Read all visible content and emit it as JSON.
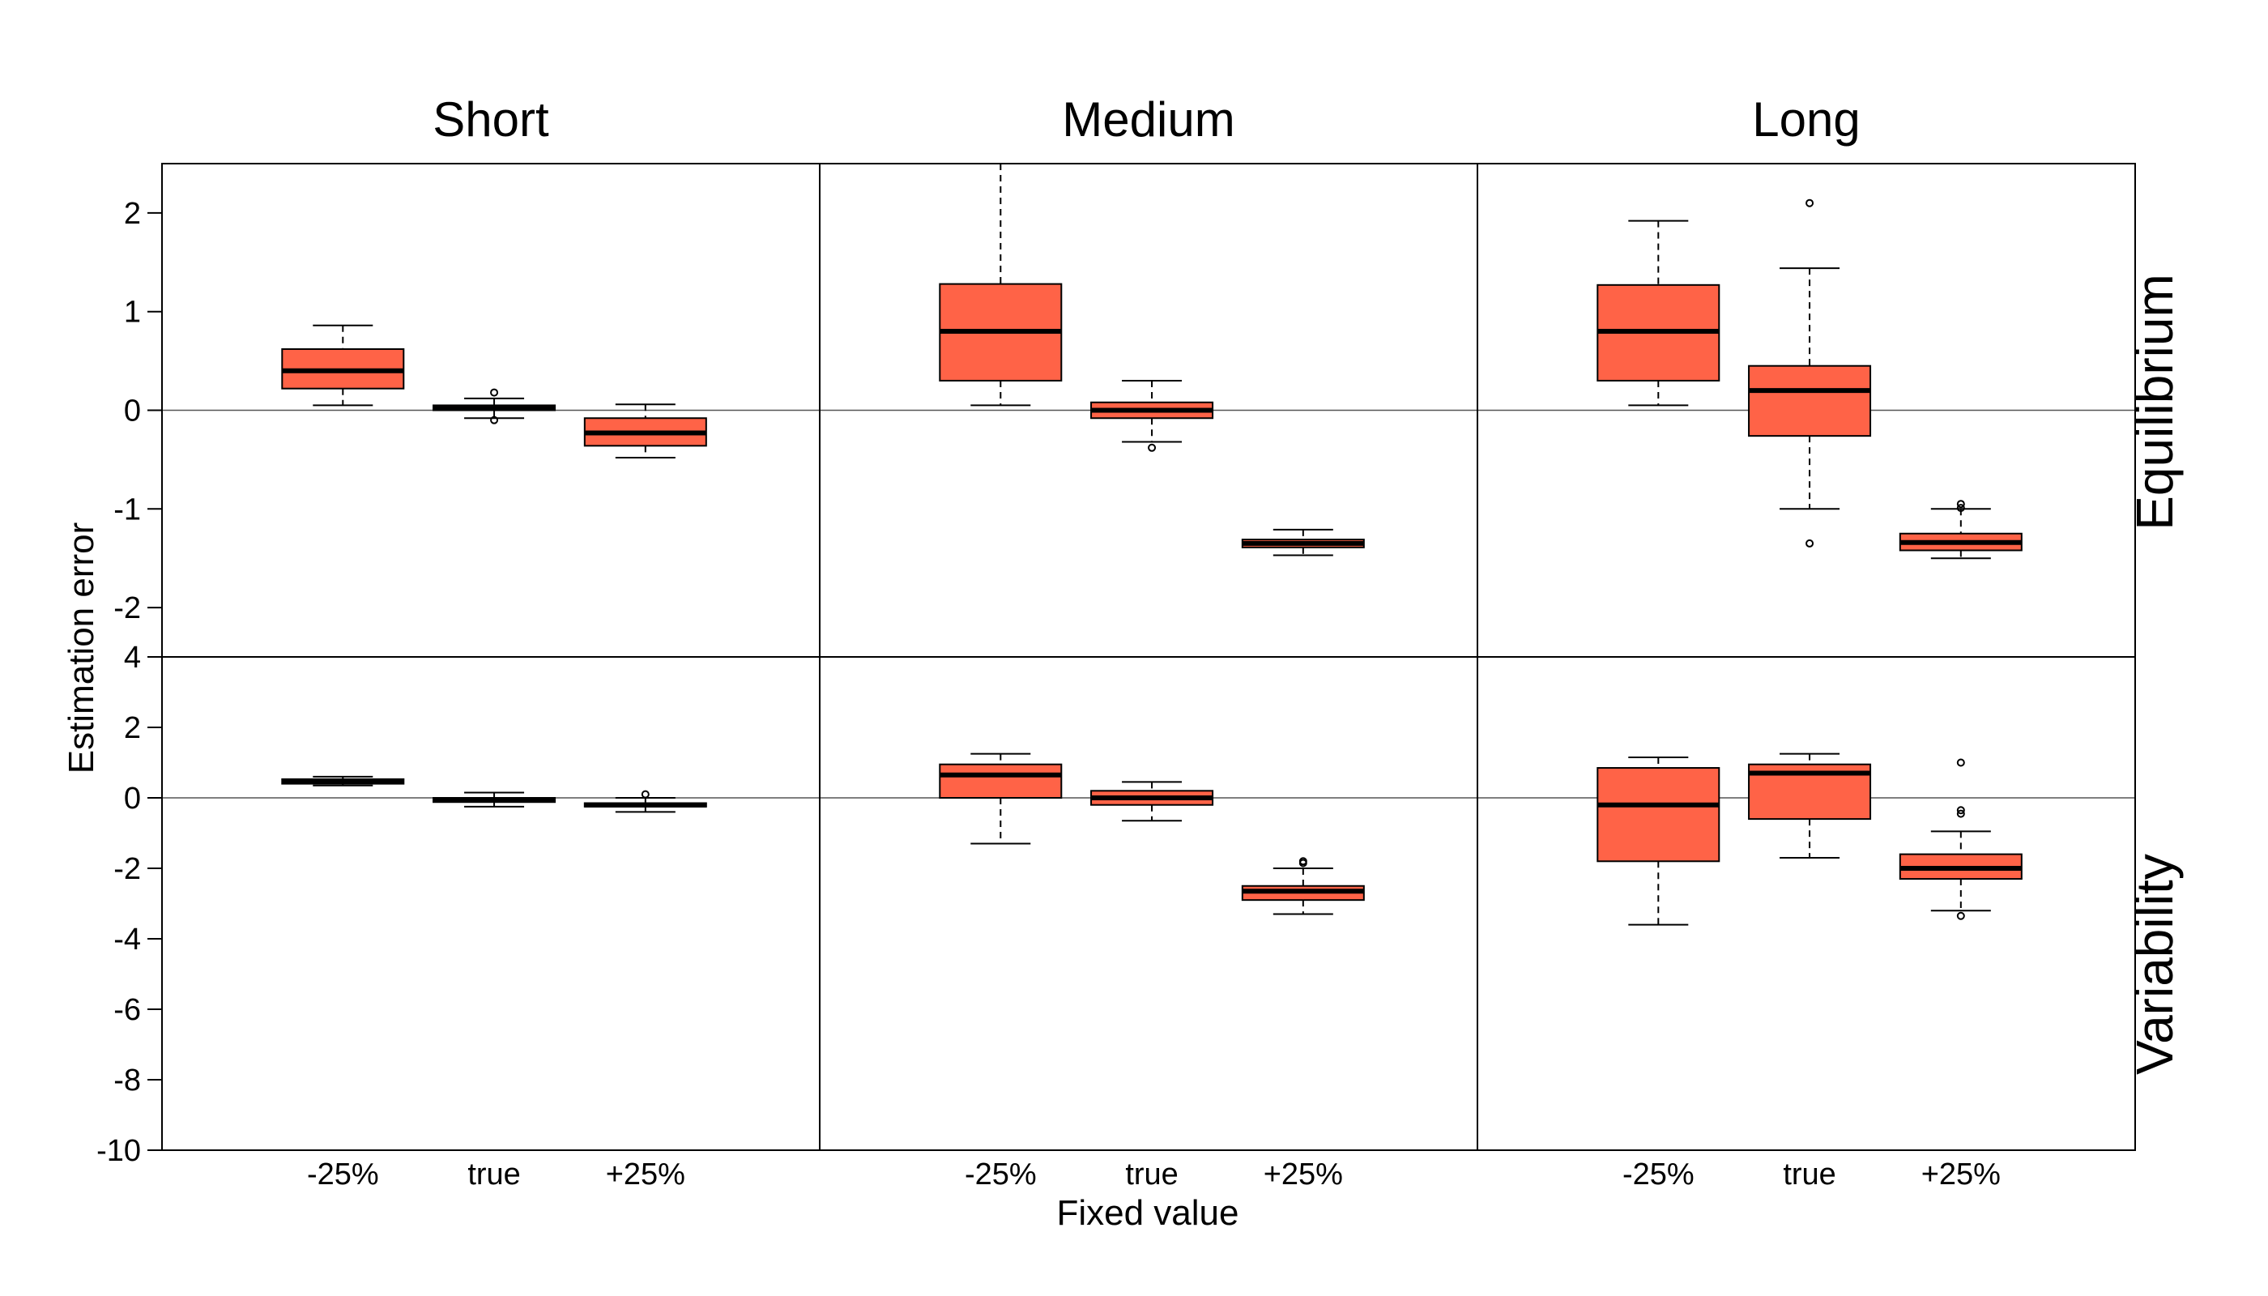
{
  "chart_data": {
    "type": "boxplot",
    "xlabel": "Fixed value",
    "ylabel": "Estimation error",
    "categories": [
      "-25%",
      "true",
      "+25%"
    ],
    "columns": [
      "Short",
      "Medium",
      "Long"
    ],
    "rows": [
      "Equilibrium",
      "Variability"
    ],
    "box_color": "#FF6347",
    "row_axes": [
      {
        "ylim": [
          -2.5,
          2.5
        ],
        "ticks": [
          -2,
          -1,
          0,
          1,
          2
        ]
      },
      {
        "ylim": [
          -10,
          4
        ],
        "ticks": [
          -10,
          -8,
          -6,
          -4,
          -2,
          0,
          2,
          4
        ]
      }
    ],
    "panels": [
      {
        "row": 0,
        "col": 0,
        "boxes": [
          {
            "category": "-25%",
            "whisker_low": 0.05,
            "q1": 0.22,
            "median": 0.4,
            "q3": 0.62,
            "whisker_high": 0.86,
            "outliers": []
          },
          {
            "category": "true",
            "whisker_low": -0.08,
            "q1": 0.0,
            "median": 0.02,
            "q3": 0.05,
            "whisker_high": 0.12,
            "outliers": [
              0.18,
              -0.1
            ]
          },
          {
            "category": "+25%",
            "whisker_low": -0.48,
            "q1": -0.36,
            "median": -0.23,
            "q3": -0.08,
            "whisker_high": 0.06,
            "outliers": []
          }
        ]
      },
      {
        "row": 0,
        "col": 1,
        "boxes": [
          {
            "category": "-25%",
            "whisker_low": 0.05,
            "q1": 0.3,
            "median": 0.8,
            "q3": 1.28,
            "whisker_high": 2.5,
            "outliers": []
          },
          {
            "category": "true",
            "whisker_low": -0.32,
            "q1": -0.08,
            "median": 0.0,
            "q3": 0.08,
            "whisker_high": 0.3,
            "outliers": [
              -0.38
            ]
          },
          {
            "category": "+25%",
            "whisker_low": -1.47,
            "q1": -1.39,
            "median": -1.35,
            "q3": -1.31,
            "whisker_high": -1.21,
            "outliers": []
          }
        ]
      },
      {
        "row": 0,
        "col": 2,
        "boxes": [
          {
            "category": "-25%",
            "whisker_low": 0.05,
            "q1": 0.3,
            "median": 0.8,
            "q3": 1.27,
            "whisker_high": 1.92,
            "outliers": []
          },
          {
            "category": "true",
            "whisker_low": -1.0,
            "q1": -0.26,
            "median": 0.2,
            "q3": 0.45,
            "whisker_high": 1.44,
            "outliers": [
              2.1,
              -1.35
            ]
          },
          {
            "category": "+25%",
            "whisker_low": -1.5,
            "q1": -1.42,
            "median": -1.34,
            "q3": -1.25,
            "whisker_high": -1.0,
            "outliers": [
              -0.95,
              -0.99
            ]
          }
        ]
      },
      {
        "row": 1,
        "col": 0,
        "boxes": [
          {
            "category": "-25%",
            "whisker_low": 0.35,
            "q1": 0.4,
            "median": 0.47,
            "q3": 0.53,
            "whisker_high": 0.6,
            "outliers": []
          },
          {
            "category": "true",
            "whisker_low": -0.25,
            "q1": -0.12,
            "median": -0.05,
            "q3": 0.0,
            "whisker_high": 0.15,
            "outliers": []
          },
          {
            "category": "+25%",
            "whisker_low": -0.4,
            "q1": -0.25,
            "median": -0.2,
            "q3": -0.15,
            "whisker_high": 0.0,
            "outliers": [
              0.1
            ]
          }
        ]
      },
      {
        "row": 1,
        "col": 1,
        "boxes": [
          {
            "category": "-25%",
            "whisker_low": -1.3,
            "q1": 0.0,
            "median": 0.65,
            "q3": 0.95,
            "whisker_high": 1.25,
            "outliers": []
          },
          {
            "category": "true",
            "whisker_low": -0.65,
            "q1": -0.2,
            "median": 0.0,
            "q3": 0.2,
            "whisker_high": 0.45,
            "outliers": []
          },
          {
            "category": "+25%",
            "whisker_low": -3.3,
            "q1": -2.9,
            "median": -2.65,
            "q3": -2.5,
            "whisker_high": -2.0,
            "outliers": [
              -1.8,
              -1.85
            ]
          }
        ]
      },
      {
        "row": 1,
        "col": 2,
        "boxes": [
          {
            "category": "-25%",
            "whisker_low": -3.6,
            "q1": -1.8,
            "median": -0.2,
            "q3": 0.85,
            "whisker_high": 1.15,
            "outliers": []
          },
          {
            "category": "true",
            "whisker_low": -1.7,
            "q1": -0.6,
            "median": 0.7,
            "q3": 0.95,
            "whisker_high": 1.25,
            "outliers": []
          },
          {
            "category": "+25%",
            "whisker_low": -3.2,
            "q1": -2.3,
            "median": -2.0,
            "q3": -1.6,
            "whisker_high": -0.95,
            "outliers": [
              1.0,
              -0.35,
              -0.45,
              -3.35
            ]
          }
        ]
      }
    ]
  }
}
